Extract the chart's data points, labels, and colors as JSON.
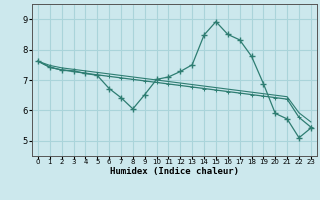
{
  "xlabel": "Humidex (Indice chaleur)",
  "bg_color": "#cce8ed",
  "grid_color": "#aad4da",
  "line_color": "#2e7d72",
  "xlim": [
    -0.5,
    23.5
  ],
  "ylim": [
    4.5,
    9.5
  ],
  "xticks": [
    0,
    1,
    2,
    3,
    4,
    5,
    6,
    7,
    8,
    9,
    10,
    11,
    12,
    13,
    14,
    15,
    16,
    17,
    18,
    19,
    20,
    21,
    22,
    23
  ],
  "yticks": [
    5,
    6,
    7,
    8,
    9
  ],
  "series1_x": [
    0,
    1,
    2,
    3,
    4,
    5,
    6,
    7,
    8,
    9,
    10,
    11,
    12,
    13,
    14,
    15,
    16,
    17,
    18,
    19,
    20,
    21,
    22,
    23
  ],
  "series1_y": [
    7.62,
    7.42,
    7.33,
    7.3,
    7.22,
    7.15,
    6.72,
    6.42,
    6.05,
    6.52,
    7.02,
    7.1,
    7.28,
    7.5,
    8.48,
    8.92,
    8.5,
    8.32,
    7.78,
    6.88,
    5.9,
    5.72,
    5.1,
    5.42
  ],
  "series2_x": [
    0,
    1,
    2,
    3,
    4,
    5,
    6,
    7,
    8,
    9,
    10,
    11,
    12,
    13,
    14,
    15,
    16,
    17,
    18,
    19,
    20,
    21,
    22,
    23
  ],
  "series2_y": [
    7.62,
    7.42,
    7.33,
    7.28,
    7.22,
    7.17,
    7.12,
    7.07,
    7.02,
    6.97,
    6.92,
    6.87,
    6.82,
    6.77,
    6.72,
    6.67,
    6.62,
    6.57,
    6.52,
    6.47,
    6.42,
    6.37,
    5.77,
    5.45
  ],
  "series3_x": [
    0,
    1,
    2,
    3,
    4,
    5,
    6,
    7,
    8,
    9,
    10,
    11,
    12,
    13,
    14,
    15,
    16,
    17,
    18,
    19,
    20,
    21,
    22,
    23
  ],
  "series3_y": [
    7.62,
    7.48,
    7.4,
    7.35,
    7.3,
    7.25,
    7.2,
    7.15,
    7.1,
    7.05,
    7.0,
    6.95,
    6.9,
    6.85,
    6.8,
    6.75,
    6.7,
    6.65,
    6.6,
    6.55,
    6.5,
    6.45,
    5.92,
    5.62
  ]
}
